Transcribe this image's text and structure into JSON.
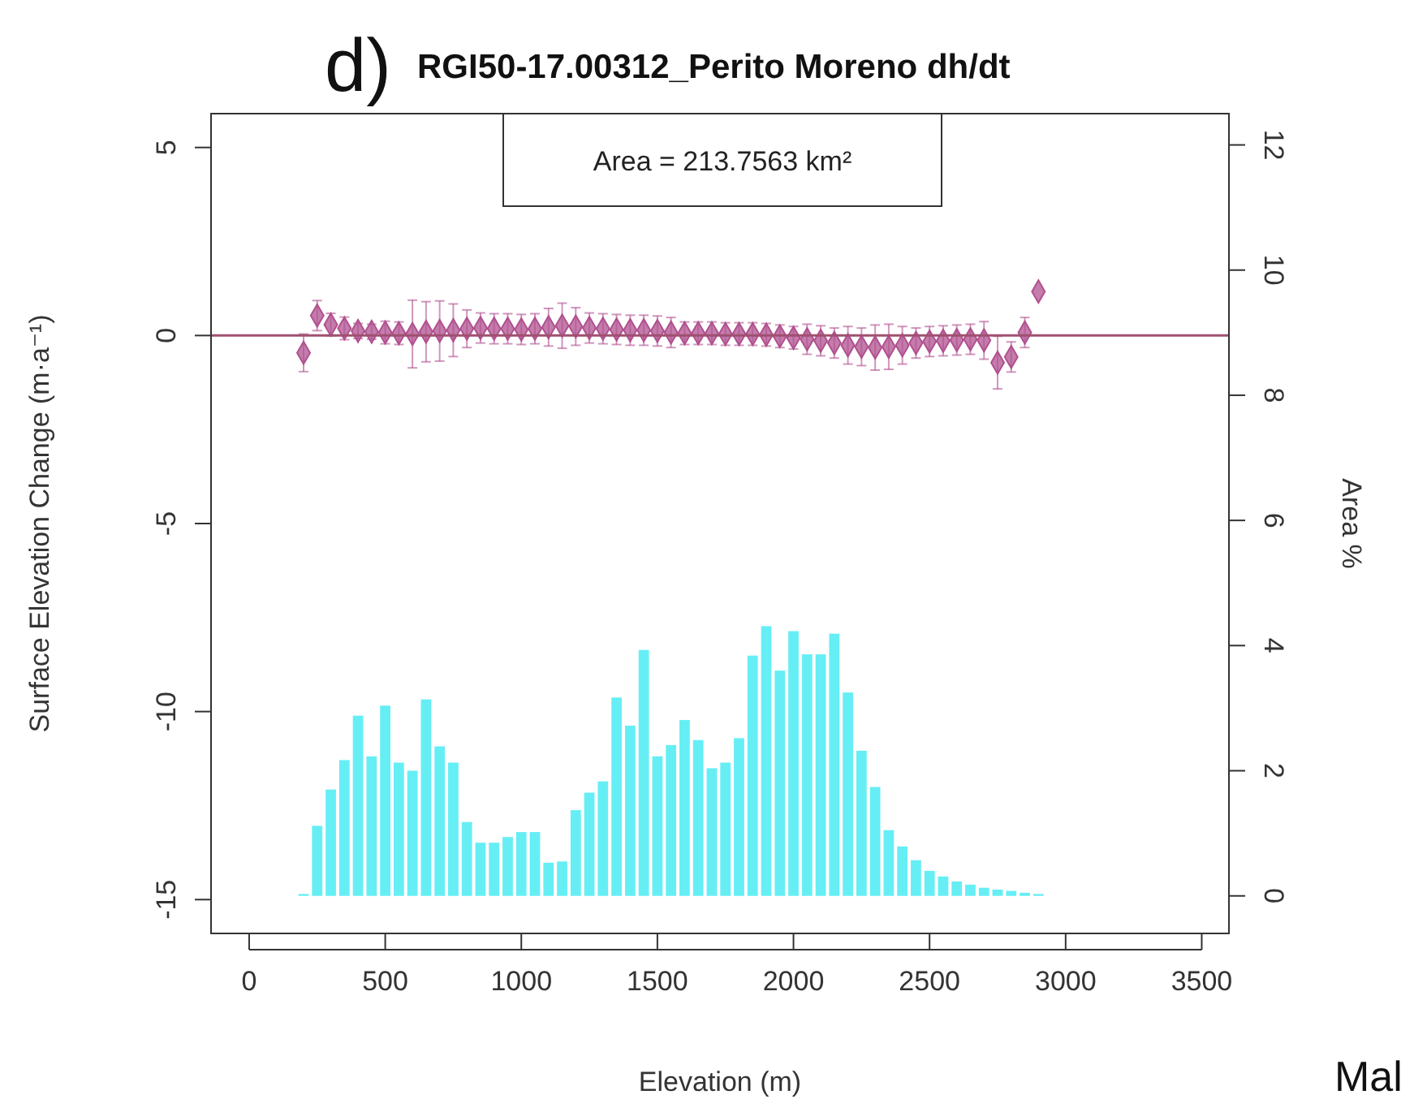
{
  "chart_data": {
    "type": "scatter",
    "title": "RGI50-17.00312_Perito Moreno dh/dt",
    "xlabel": "Elevation (m)",
    "ylabel": "Surface Elevation Change (m·a⁻¹)",
    "y2label": "Area %",
    "annotations": [
      "d)",
      "Area = 213.7563 km²",
      "Mal"
    ],
    "xlim": [
      -140,
      3600
    ],
    "xticks": [
      0,
      500,
      1000,
      1500,
      2000,
      2500,
      3000,
      3500
    ],
    "ylim": [
      -15.9,
      5.9
    ],
    "yticks": [
      -15,
      -10,
      -5,
      0,
      5
    ],
    "y2lim": [
      -0.6,
      12.5
    ],
    "y2ticks": [
      0,
      2,
      4,
      6,
      8,
      10,
      12
    ],
    "ref_lines": [
      {
        "axis": "y",
        "value": 0,
        "color": "#a05070"
      }
    ],
    "marker": "diamond",
    "series": [
      {
        "type": "histogram",
        "axis": "y2",
        "color": "#66eef5",
        "bins": [
          175,
          225,
          275,
          325,
          375,
          425,
          475,
          525,
          575,
          625,
          675,
          725,
          775,
          825,
          875,
          925,
          975,
          1025,
          1075,
          1125,
          1175,
          1225,
          1275,
          1325,
          1375,
          1425,
          1475,
          1525,
          1575,
          1625,
          1675,
          1725,
          1775,
          1825,
          1875,
          1925,
          1975,
          2025,
          2075,
          2125,
          2175,
          2225,
          2275,
          2325,
          2375,
          2425,
          2475,
          2525,
          2575,
          2625,
          2675,
          2725,
          2775,
          2825,
          2875,
          2925
        ],
        "values": [
          0.03,
          1.12,
          1.7,
          2.17,
          2.88,
          2.23,
          3.04,
          2.13,
          2.0,
          3.14,
          2.39,
          2.13,
          1.18,
          0.85,
          0.85,
          0.94,
          1.02,
          1.02,
          0.53,
          0.55,
          1.37,
          1.65,
          1.83,
          3.17,
          2.72,
          3.93,
          2.23,
          2.41,
          2.81,
          2.49,
          2.04,
          2.13,
          2.52,
          3.84,
          4.31,
          3.6,
          4.23,
          3.86,
          3.86,
          4.19,
          3.25,
          2.32,
          1.74,
          1.05,
          0.79,
          0.57,
          0.4,
          0.31,
          0.23,
          0.18,
          0.13,
          0.1,
          0.08,
          0.05,
          0.03
        ]
      },
      {
        "color": "#b0508f",
        "x": [
          200,
          250,
          300,
          350,
          400,
          450,
          500,
          550,
          600,
          650,
          700,
          750,
          800,
          850,
          900,
          950,
          1000,
          1050,
          1100,
          1150,
          1200,
          1250,
          1300,
          1350,
          1400,
          1450,
          1500,
          1550,
          1600,
          1650,
          1700,
          1750,
          1800,
          1850,
          1900,
          1950,
          2000,
          2050,
          2100,
          2150,
          2200,
          2250,
          2300,
          2350,
          2400,
          2450,
          2500,
          2550,
          2600,
          2650,
          2700,
          2750,
          2800,
          2850,
          2900
        ],
        "values": [
          -0.46,
          0.53,
          0.29,
          0.19,
          0.12,
          0.1,
          0.08,
          0.06,
          0.04,
          0.1,
          0.12,
          0.14,
          0.18,
          0.2,
          0.18,
          0.18,
          0.16,
          0.18,
          0.22,
          0.26,
          0.24,
          0.2,
          0.18,
          0.16,
          0.14,
          0.14,
          0.12,
          0.08,
          0.06,
          0.06,
          0.06,
          0.04,
          0.04,
          0.04,
          0.02,
          -0.02,
          -0.06,
          -0.1,
          -0.14,
          -0.2,
          -0.26,
          -0.3,
          -0.32,
          -0.3,
          -0.26,
          -0.2,
          -0.16,
          -0.14,
          -0.12,
          -0.1,
          -0.13,
          -0.72,
          -0.57,
          0.08,
          1.17
        ],
        "errors": [
          0.5,
          0.4,
          0.3,
          0.3,
          0.2,
          0.2,
          0.3,
          0.3,
          0.9,
          0.8,
          0.8,
          0.7,
          0.5,
          0.4,
          0.4,
          0.4,
          0.4,
          0.4,
          0.5,
          0.6,
          0.5,
          0.4,
          0.4,
          0.4,
          0.4,
          0.4,
          0.4,
          0.4,
          0.3,
          0.3,
          0.3,
          0.3,
          0.3,
          0.3,
          0.3,
          0.3,
          0.3,
          0.4,
          0.4,
          0.4,
          0.5,
          0.5,
          0.6,
          0.6,
          0.5,
          0.4,
          0.4,
          0.4,
          0.4,
          0.4,
          0.5,
          0.7,
          0.4,
          0.4,
          null
        ]
      }
    ]
  }
}
